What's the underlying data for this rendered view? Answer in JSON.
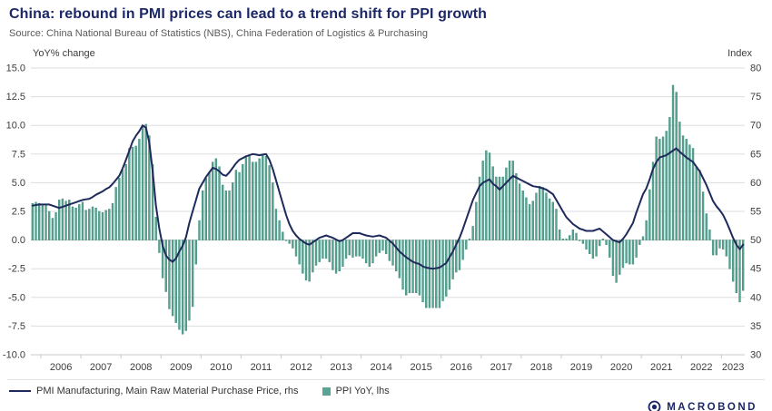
{
  "header": {
    "title": "China: rebound in PMI prices can lead to a trend shift for PPI growth",
    "source": "Source: China National Bureau of Statistics (NBS), China Federation of Logistics & Purchasing"
  },
  "axes": {
    "left_label": "YoY% change",
    "right_label": "Index",
    "left_ticks": [
      "15.0",
      "12.5",
      "10.0",
      "7.5",
      "5.0",
      "2.5",
      "0.0",
      "-2.5",
      "-5.0",
      "-7.5",
      "-10.0"
    ],
    "right_ticks": [
      "80",
      "75",
      "70",
      "65",
      "60",
      "55",
      "50",
      "45",
      "40",
      "35",
      "30"
    ],
    "x_ticks": [
      "2006",
      "2007",
      "2008",
      "2009",
      "2010",
      "2011",
      "2012",
      "2013",
      "2014",
      "2015",
      "2016",
      "2017",
      "2018",
      "2019",
      "2020",
      "2021",
      "2022",
      "2023"
    ]
  },
  "legend": [
    {
      "type": "line",
      "label": "PMI Manufacturing, Main Raw Material Purchase Price, rhs",
      "color": "#1f2a5c"
    },
    {
      "type": "bar",
      "label": "PPI YoY, lhs",
      "color": "#5aa493"
    }
  ],
  "branding": {
    "logo_text": "MACROBOND"
  },
  "colors": {
    "accent": "#1b2766",
    "bar_fill": "#5aa493",
    "bar_stroke": "#3e8d7b",
    "grid": "#dcdde0",
    "tick_text": "#3c3c3c"
  },
  "chart_data": {
    "type": "bar+line",
    "title": "China: rebound in PMI prices can lead to a trend shift for PPI growth",
    "frequency": "monthly",
    "start": "2005-10",
    "end": "2023-07",
    "grid": true,
    "legend_position": "bottom-left",
    "left_axis": {
      "label": "YoY% change",
      "min": -10,
      "max": 15,
      "tick_step": 2.5
    },
    "right_axis": {
      "label": "Index",
      "min": 30,
      "max": 80,
      "tick_step": 5
    },
    "x_years": [
      2006,
      2007,
      2008,
      2009,
      2010,
      2011,
      2012,
      2013,
      2014,
      2015,
      2016,
      2017,
      2018,
      2019,
      2020,
      2021,
      2022,
      2023
    ],
    "series": [
      {
        "name": "PPI YoY, lhs",
        "type": "bar",
        "axis": "left",
        "color": "#5aa493",
        "stroke": "#3e8d7b",
        "values": [
          3.2,
          3.3,
          3.2,
          3.1,
          3.0,
          2.5,
          1.9,
          2.4,
          3.5,
          3.6,
          3.4,
          3.5,
          2.9,
          2.8,
          3.1,
          3.3,
          2.6,
          2.7,
          2.9,
          2.8,
          2.5,
          2.4,
          2.6,
          2.7,
          3.2,
          4.6,
          5.4,
          6.1,
          6.6,
          8.0,
          8.1,
          8.2,
          8.8,
          10.0,
          10.1,
          9.1,
          6.6,
          2.0,
          -1.1,
          -3.3,
          -4.5,
          -6.0,
          -6.6,
          -7.2,
          -7.8,
          -8.2,
          -7.9,
          -7.0,
          -5.8,
          -2.1,
          1.7,
          4.3,
          5.4,
          5.9,
          6.8,
          7.1,
          6.4,
          4.8,
          4.3,
          4.3,
          5.0,
          6.1,
          5.9,
          6.6,
          7.2,
          7.3,
          6.8,
          6.8,
          7.1,
          7.5,
          7.3,
          6.5,
          5.0,
          2.7,
          1.7,
          0.7,
          0.0,
          -0.3,
          -0.7,
          -1.4,
          -2.1,
          -2.9,
          -3.5,
          -3.6,
          -2.8,
          -2.2,
          -1.9,
          -1.6,
          -1.6,
          -1.9,
          -2.6,
          -2.9,
          -2.7,
          -2.3,
          -1.6,
          -1.3,
          -1.5,
          -1.4,
          -1.4,
          -1.6,
          -2.0,
          -2.3,
          -2.0,
          -1.4,
          -1.1,
          -0.9,
          -1.2,
          -1.8,
          -2.2,
          -2.7,
          -3.3,
          -4.3,
          -4.8,
          -4.6,
          -4.6,
          -4.6,
          -4.8,
          -5.4,
          -5.9,
          -5.9,
          -5.9,
          -5.9,
          -5.9,
          -5.3,
          -4.9,
          -4.3,
          -3.4,
          -2.8,
          -2.6,
          -1.7,
          -0.8,
          0.1,
          1.2,
          3.3,
          5.5,
          6.9,
          7.8,
          7.6,
          6.4,
          5.5,
          5.5,
          5.5,
          6.3,
          6.9,
          6.9,
          5.8,
          4.9,
          4.3,
          3.7,
          3.1,
          3.4,
          4.1,
          4.7,
          4.6,
          4.1,
          3.6,
          3.3,
          2.7,
          0.9,
          0.1,
          0.1,
          0.4,
          0.9,
          0.6,
          0.0,
          -0.3,
          -0.8,
          -1.2,
          -1.6,
          -1.4,
          -0.5,
          0.1,
          -0.4,
          -1.5,
          -3.1,
          -3.7,
          -3.0,
          -2.4,
          -2.0,
          -2.1,
          -2.1,
          -1.5,
          -0.4,
          0.3,
          1.7,
          4.4,
          6.8,
          9.0,
          8.8,
          9.0,
          9.5,
          10.7,
          13.5,
          12.9,
          10.3,
          9.1,
          8.8,
          8.3,
          8.0,
          6.4,
          6.1,
          4.2,
          2.3,
          0.9,
          -1.3,
          -1.3,
          -0.7,
          -0.8,
          -1.4,
          -2.5,
          -3.6,
          -4.6,
          -5.4,
          -4.4
        ]
      },
      {
        "name": "PMI Manufacturing, Main Raw Material Purchase Price, rhs",
        "type": "line",
        "axis": "right",
        "color": "#1f2a5c",
        "values": [
          56.0,
          56.1,
          56.2,
          56.2,
          56.2,
          56.2,
          56.0,
          55.8,
          55.6,
          55.8,
          56.0,
          56.2,
          56.4,
          56.6,
          56.8,
          57.0,
          57.1,
          57.2,
          57.5,
          57.9,
          58.2,
          58.5,
          58.9,
          59.2,
          59.8,
          60.5,
          61.2,
          62.5,
          64.0,
          65.6,
          67.2,
          68.2,
          69.0,
          70.0,
          69.6,
          67.0,
          62.0,
          56.0,
          52.0,
          49.0,
          47.3,
          46.6,
          46.2,
          46.8,
          48.0,
          49.0,
          50.5,
          53.0,
          55.0,
          57.0,
          59.0,
          60.0,
          61.0,
          61.8,
          62.6,
          62.4,
          62.0,
          61.4,
          61.2,
          61.8,
          62.6,
          63.4,
          64.0,
          64.3,
          64.6,
          64.8,
          65.0,
          64.9,
          64.8,
          64.9,
          65.0,
          64.0,
          62.4,
          60.4,
          58.4,
          56.4,
          54.4,
          52.8,
          51.6,
          50.8,
          50.2,
          49.8,
          49.4,
          49.2,
          49.6,
          50.0,
          50.4,
          50.6,
          50.8,
          50.6,
          50.4,
          50.1,
          49.8,
          50.0,
          50.4,
          50.8,
          51.2,
          51.2,
          51.2,
          51.0,
          50.8,
          50.7,
          50.6,
          50.7,
          50.8,
          50.6,
          50.4,
          49.9,
          49.4,
          48.7,
          48.0,
          47.5,
          47.0,
          46.6,
          46.2,
          46.0,
          45.8,
          45.4,
          45.2,
          45.1,
          45.0,
          45.1,
          45.2,
          45.6,
          46.0,
          47.0,
          48.0,
          49.2,
          50.4,
          51.9,
          53.6,
          55.3,
          57.0,
          58.2,
          59.4,
          60.0,
          60.3,
          60.6,
          59.8,
          59.4,
          58.8,
          59.4,
          60.0,
          60.6,
          61.2,
          60.9,
          60.6,
          60.3,
          60.0,
          59.7,
          59.4,
          59.3,
          59.2,
          59.0,
          58.8,
          58.4,
          58.0,
          57.0,
          56.0,
          55.0,
          54.0,
          53.4,
          52.8,
          52.4,
          52.0,
          51.8,
          51.6,
          51.6,
          51.6,
          51.8,
          52.0,
          51.5,
          51.0,
          50.5,
          50.0,
          49.8,
          49.6,
          50.2,
          51.0,
          52.0,
          53.0,
          54.8,
          56.4,
          58.0,
          59.0,
          60.6,
          62.4,
          63.6,
          64.4,
          64.6,
          64.8,
          65.2,
          65.6,
          66.0,
          65.4,
          64.9,
          64.4,
          64.0,
          63.6,
          62.8,
          62.0,
          60.8,
          59.6,
          58.2,
          56.8,
          55.9,
          55.2,
          54.4,
          53.2,
          51.8,
          50.4,
          49.2,
          48.4,
          49.2
        ]
      }
    ]
  }
}
